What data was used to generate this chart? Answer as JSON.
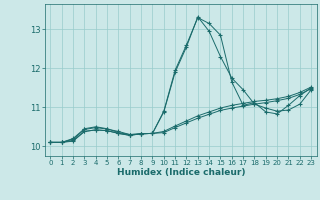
{
  "xlabel": "Humidex (Indice chaleur)",
  "xlim": [
    -0.5,
    23.5
  ],
  "ylim": [
    9.75,
    13.65
  ],
  "yticks": [
    10,
    11,
    12,
    13
  ],
  "xticks": [
    0,
    1,
    2,
    3,
    4,
    5,
    6,
    7,
    8,
    9,
    10,
    11,
    12,
    13,
    14,
    15,
    16,
    17,
    18,
    19,
    20,
    21,
    22,
    23
  ],
  "bg_color": "#cce8e8",
  "line_color": "#1a6b6b",
  "grid_color": "#99cccc",
  "series": [
    [
      10.1,
      10.1,
      10.2,
      10.45,
      10.5,
      10.45,
      10.35,
      10.3,
      10.32,
      10.33,
      10.9,
      11.95,
      12.6,
      13.3,
      13.15,
      12.85,
      11.65,
      11.05,
      11.12,
      10.88,
      10.83,
      11.05,
      11.3,
      11.5
    ],
    [
      10.1,
      10.1,
      10.18,
      10.43,
      10.48,
      10.44,
      10.38,
      10.3,
      10.32,
      10.33,
      10.88,
      11.9,
      12.55,
      13.32,
      12.95,
      12.3,
      11.75,
      11.45,
      11.08,
      10.98,
      10.9,
      10.93,
      11.08,
      11.45
    ],
    [
      10.1,
      10.1,
      10.15,
      10.38,
      10.42,
      10.4,
      10.33,
      10.28,
      10.32,
      10.33,
      10.38,
      10.52,
      10.65,
      10.78,
      10.88,
      10.98,
      11.05,
      11.1,
      11.15,
      11.18,
      11.22,
      11.28,
      11.38,
      11.52
    ],
    [
      10.1,
      10.1,
      10.13,
      10.38,
      10.42,
      10.4,
      10.33,
      10.28,
      10.32,
      10.33,
      10.35,
      10.48,
      10.6,
      10.72,
      10.82,
      10.92,
      10.98,
      11.03,
      11.08,
      11.12,
      11.17,
      11.23,
      11.33,
      11.48
    ]
  ]
}
